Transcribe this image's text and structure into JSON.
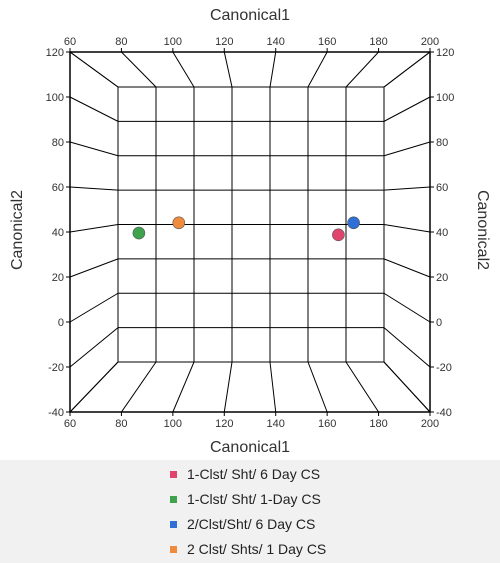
{
  "chart_data": {
    "type": "scatter",
    "subtype": "3d-box",
    "x_title": "Canonical1",
    "y_title": "Canonical2",
    "xlim": [
      60,
      200
    ],
    "ylim": [
      -40,
      120
    ],
    "x_ticks": [
      60,
      80,
      100,
      120,
      140,
      160,
      180,
      200
    ],
    "y_ticks": [
      -40,
      -20,
      0,
      20,
      40,
      60,
      80,
      100,
      120
    ],
    "grid": true,
    "legend_position": "bottom",
    "series": [
      {
        "name": "1-Clst/ Sht/ 6 Day CS",
        "color": "#e0446c",
        "x": 176,
        "y": 34
      },
      {
        "name": "1-Clst/ Sht/ 1-Day CS",
        "color": "#3fa34d",
        "x": 71,
        "y": 35
      },
      {
        "name": "2/Clst/Sht/ 6 Day CS",
        "color": "#2f6fd6",
        "x": 184,
        "y": 41
      },
      {
        "name": "2 Clst/ Shts/ 1 Day CS",
        "color": "#f08a3c",
        "x": 92,
        "y": 41
      }
    ]
  }
}
